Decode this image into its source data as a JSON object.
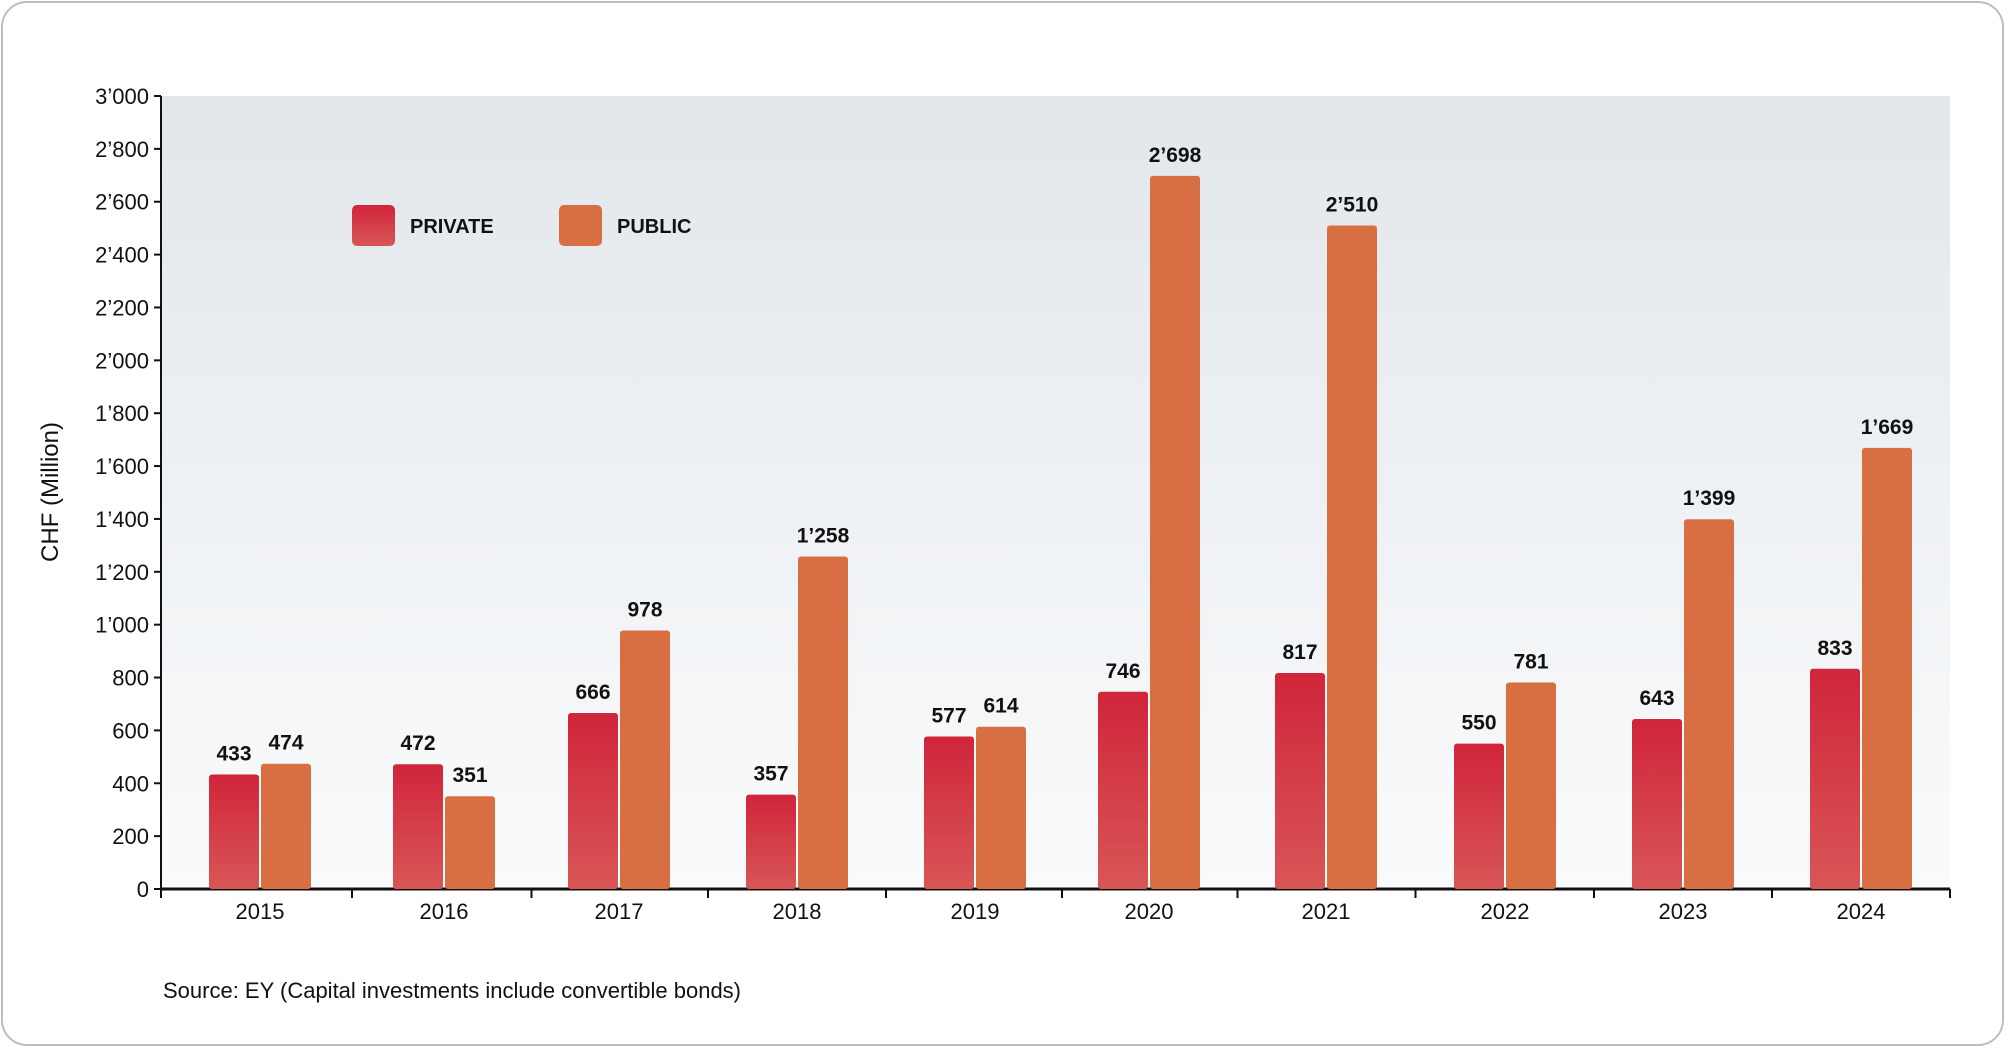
{
  "chart_data": {
    "type": "bar",
    "title": "",
    "xlabel": "",
    "ylabel": "CHF (Million)",
    "ylim": [
      0,
      3000
    ],
    "yticks": [
      0,
      200,
      400,
      600,
      800,
      1000,
      1200,
      1400,
      1600,
      1800,
      2000,
      2200,
      2400,
      2600,
      2800,
      3000
    ],
    "ytick_labels": [
      "0",
      "200",
      "400",
      "600",
      "800",
      "1’000",
      "1’200",
      "1’400",
      "1’600",
      "1’800",
      "2’000",
      "2’200",
      "2’400",
      "2’600",
      "2’800",
      "3’000"
    ],
    "categories": [
      "2015",
      "2016",
      "2017",
      "2018",
      "2019",
      "2020",
      "2021",
      "2022",
      "2023",
      "2024"
    ],
    "series": [
      {
        "name": "PRIVATE",
        "color": "#d0253a",
        "values": [
          433,
          472,
          666,
          357,
          577,
          746,
          817,
          550,
          643,
          833
        ],
        "labels": [
          "433",
          "472",
          "666",
          "357",
          "577",
          "746",
          "817",
          "550",
          "643",
          "833"
        ]
      },
      {
        "name": "PUBLIC",
        "color": "#d76f42",
        "values": [
          474,
          351,
          978,
          1258,
          614,
          2698,
          2510,
          781,
          1399,
          1669
        ],
        "labels": [
          "474",
          "351",
          "978",
          "1’258",
          "614",
          "2’698",
          "2’510",
          "781",
          "1’399",
          "1’669"
        ]
      }
    ],
    "legend": "top-left",
    "grid": false
  },
  "source": "Source: EY (Capital investments include convertible bonds)"
}
